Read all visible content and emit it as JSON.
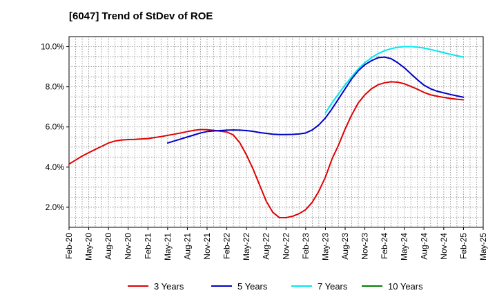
{
  "chart_data": {
    "type": "line",
    "title": "[6047]  Trend of StDev of ROE",
    "xlabel": "",
    "ylabel": "",
    "x_tick_labels": [
      "Feb-20",
      "May-20",
      "Aug-20",
      "Nov-20",
      "Feb-21",
      "May-21",
      "Aug-21",
      "Nov-21",
      "Feb-22",
      "May-22",
      "Aug-22",
      "Nov-22",
      "Feb-23",
      "May-23",
      "Aug-23",
      "Nov-23",
      "Feb-24",
      "May-24",
      "Aug-24",
      "Nov-24",
      "Feb-25",
      "May-25"
    ],
    "y_ticks": [
      2.0,
      4.0,
      6.0,
      8.0,
      10.0
    ],
    "y_tick_labels": [
      "2.0%",
      "4.0%",
      "6.0%",
      "8.0%",
      "10.0%"
    ],
    "ylim": [
      1.0,
      10.5
    ],
    "grid": true,
    "legend_position": "bottom",
    "series": [
      {
        "name": "3 Years",
        "color": "#e00000",
        "x": [
          "Feb-20",
          "Mar-20",
          "Apr-20",
          "May-20",
          "Jun-20",
          "Jul-20",
          "Aug-20",
          "Sep-20",
          "Oct-20",
          "Nov-20",
          "Dec-20",
          "Jan-21",
          "Feb-21",
          "Mar-21",
          "Apr-21",
          "May-21",
          "Jun-21",
          "Jul-21",
          "Aug-21",
          "Sep-21",
          "Oct-21",
          "Nov-21",
          "Dec-21",
          "Jan-22",
          "Feb-22",
          "Mar-22",
          "Apr-22",
          "May-22",
          "Jun-22",
          "Jul-22",
          "Aug-22",
          "Sep-22",
          "Oct-22",
          "Nov-22",
          "Dec-22",
          "Jan-23",
          "Feb-23",
          "Mar-23",
          "Apr-23",
          "May-23",
          "Jun-23",
          "Jul-23",
          "Aug-23",
          "Sep-23",
          "Oct-23",
          "Nov-23",
          "Dec-23",
          "Jan-24",
          "Feb-24",
          "Mar-24",
          "Apr-24",
          "May-24",
          "Jun-24",
          "Jul-24",
          "Aug-24",
          "Sep-24",
          "Oct-24",
          "Nov-24",
          "Dec-24",
          "Jan-25",
          "Feb-25"
        ],
        "values": [
          4.15,
          4.35,
          4.55,
          4.72,
          4.88,
          5.04,
          5.2,
          5.3,
          5.35,
          5.37,
          5.38,
          5.4,
          5.42,
          5.47,
          5.52,
          5.58,
          5.64,
          5.7,
          5.77,
          5.83,
          5.87,
          5.86,
          5.83,
          5.79,
          5.75,
          5.6,
          5.2,
          4.6,
          3.9,
          3.1,
          2.3,
          1.75,
          1.48,
          1.48,
          1.55,
          1.68,
          1.88,
          2.25,
          2.8,
          3.5,
          4.4,
          5.1,
          5.9,
          6.6,
          7.2,
          7.6,
          7.9,
          8.1,
          8.2,
          8.25,
          8.23,
          8.15,
          8.02,
          7.88,
          7.72,
          7.6,
          7.53,
          7.47,
          7.42,
          7.38,
          7.35
        ]
      },
      {
        "name": "5 Years",
        "color": "#0000c8",
        "x": [
          "May-21",
          "Jun-21",
          "Jul-21",
          "Aug-21",
          "Sep-21",
          "Oct-21",
          "Nov-21",
          "Dec-21",
          "Jan-22",
          "Feb-22",
          "Mar-22",
          "Apr-22",
          "May-22",
          "Jun-22",
          "Jul-22",
          "Aug-22",
          "Sep-22",
          "Oct-22",
          "Nov-22",
          "Dec-22",
          "Jan-23",
          "Feb-23",
          "Mar-23",
          "Apr-23",
          "May-23",
          "Jun-23",
          "Jul-23",
          "Aug-23",
          "Sep-23",
          "Oct-23",
          "Nov-23",
          "Dec-23",
          "Jan-24",
          "Feb-24",
          "Mar-24",
          "Apr-24",
          "May-24",
          "Jun-24",
          "Jul-24",
          "Aug-24",
          "Sep-24",
          "Oct-24",
          "Nov-24",
          "Dec-24",
          "Jan-25",
          "Feb-25"
        ],
        "values": [
          5.2,
          5.3,
          5.4,
          5.5,
          5.6,
          5.7,
          5.77,
          5.8,
          5.82,
          5.84,
          5.85,
          5.84,
          5.82,
          5.78,
          5.72,
          5.68,
          5.64,
          5.62,
          5.62,
          5.63,
          5.65,
          5.7,
          5.85,
          6.1,
          6.45,
          6.9,
          7.4,
          7.9,
          8.4,
          8.8,
          9.1,
          9.3,
          9.45,
          9.48,
          9.4,
          9.2,
          8.95,
          8.65,
          8.35,
          8.08,
          7.9,
          7.78,
          7.7,
          7.62,
          7.55,
          7.48
        ]
      },
      {
        "name": "7 Years",
        "color": "#00e8f0",
        "x": [
          "May-23",
          "Jun-23",
          "Jul-23",
          "Aug-23",
          "Sep-23",
          "Oct-23",
          "Nov-23",
          "Dec-23",
          "Jan-24",
          "Feb-24",
          "Mar-24",
          "Apr-24",
          "May-24",
          "Jun-24",
          "Jul-24",
          "Aug-24",
          "Sep-24",
          "Oct-24",
          "Nov-24",
          "Dec-24",
          "Jan-25",
          "Feb-25"
        ],
        "values": [
          6.7,
          7.2,
          7.65,
          8.1,
          8.5,
          8.9,
          9.2,
          9.45,
          9.65,
          9.8,
          9.9,
          9.97,
          10.0,
          10.0,
          9.98,
          9.93,
          9.86,
          9.78,
          9.7,
          9.62,
          9.55,
          9.48
        ]
      },
      {
        "name": "10 Years",
        "color": "#008000",
        "x": [],
        "values": []
      }
    ]
  }
}
